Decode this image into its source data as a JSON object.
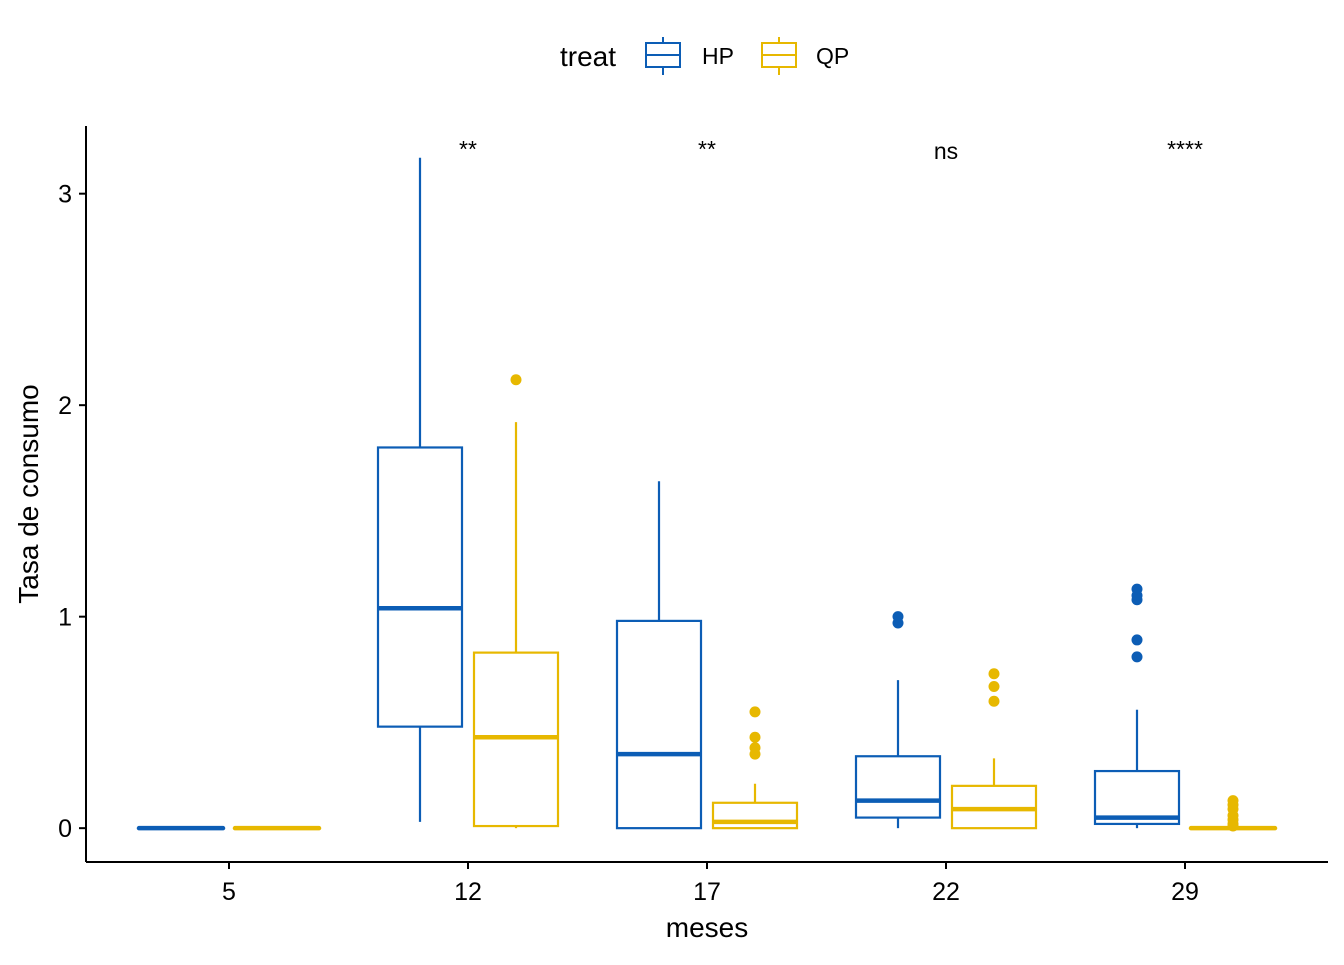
{
  "chart_data": {
    "type": "boxplot",
    "xlabel": "meses",
    "ylabel": "Tasa de consumo",
    "categories": [
      "5",
      "12",
      "17",
      "22",
      "29"
    ],
    "yticks": [
      0,
      1,
      2,
      3
    ],
    "ylim": [
      -0.16,
      3.32
    ],
    "grid": false,
    "legend": {
      "title": "treat",
      "position": "top",
      "items": [
        {
          "name": "HP",
          "color": "#0C5DB5"
        },
        {
          "name": "QP",
          "color": "#E7B800"
        }
      ]
    },
    "series": [
      {
        "name": "HP",
        "color": "#0C5DB5",
        "boxes": [
          {
            "category": "5",
            "min": 0,
            "q1": 0,
            "median": 0,
            "q3": 0,
            "max": 0,
            "outliers": []
          },
          {
            "category": "12",
            "min": 0.03,
            "q1": 0.48,
            "median": 1.04,
            "q3": 1.8,
            "max": 3.17,
            "outliers": []
          },
          {
            "category": "17",
            "min": 0,
            "q1": 0,
            "median": 0.35,
            "q3": 0.98,
            "max": 1.64,
            "outliers": []
          },
          {
            "category": "22",
            "min": 0,
            "q1": 0.05,
            "median": 0.13,
            "q3": 0.34,
            "max": 0.7,
            "outliers": [
              0.97,
              1.0
            ]
          },
          {
            "category": "29",
            "min": 0,
            "q1": 0.02,
            "median": 0.05,
            "q3": 0.27,
            "max": 0.56,
            "outliers": [
              0.81,
              0.89,
              1.08,
              1.1,
              1.13
            ]
          }
        ]
      },
      {
        "name": "QP",
        "color": "#E7B800",
        "boxes": [
          {
            "category": "5",
            "min": 0,
            "q1": 0,
            "median": 0,
            "q3": 0,
            "max": 0,
            "outliers": []
          },
          {
            "category": "12",
            "min": 0,
            "q1": 0.01,
            "median": 0.43,
            "q3": 0.83,
            "max": 1.92,
            "outliers": [
              2.12
            ]
          },
          {
            "category": "17",
            "min": 0,
            "q1": 0,
            "median": 0.03,
            "q3": 0.12,
            "max": 0.21,
            "outliers": [
              0.35,
              0.38,
              0.43,
              0.55
            ]
          },
          {
            "category": "22",
            "min": 0,
            "q1": 0,
            "median": 0.09,
            "q3": 0.2,
            "max": 0.33,
            "outliers": [
              0.6,
              0.67,
              0.73
            ]
          },
          {
            "category": "29",
            "min": 0,
            "q1": 0,
            "median": 0,
            "q3": 0,
            "max": 0,
            "outliers": [
              0.01,
              0.02,
              0.04,
              0.06,
              0.09,
              0.11,
              0.13
            ]
          }
        ]
      }
    ],
    "annotations": [
      {
        "category": "12",
        "label": "**"
      },
      {
        "category": "17",
        "label": "**"
      },
      {
        "category": "22",
        "label": "ns"
      },
      {
        "category": "29",
        "label": "****"
      }
    ]
  }
}
